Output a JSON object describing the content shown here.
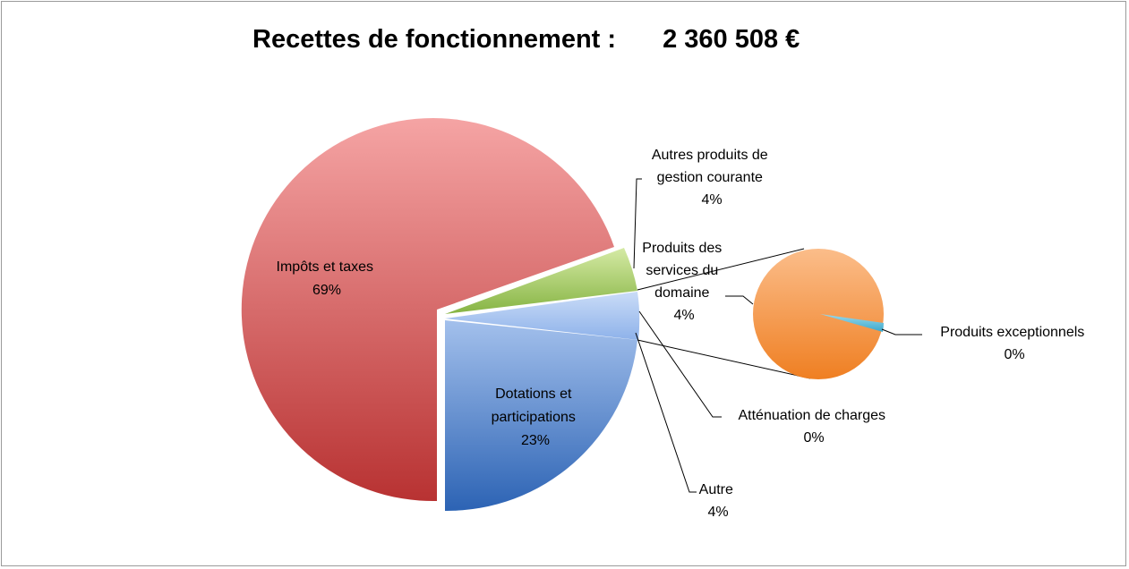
{
  "chart_data": {
    "type": "pie",
    "title": "Recettes de fonctionnement :",
    "total": "2 360 508 €",
    "slices": [
      {
        "name": "Impôts et taxes",
        "label": "69%",
        "value": 69,
        "color": "#c23b3b",
        "color_light": "#f5a4a4"
      },
      {
        "name": "Autres produits de gestion courante",
        "label": "4%",
        "value": 4,
        "color": "#8db84a",
        "color_light": "#cde59b"
      },
      {
        "name": "Autre",
        "label": "4%",
        "value": 4,
        "color": "#7fa6e6",
        "color_light": "#c9dbf7"
      },
      {
        "name": "Dotations et participations",
        "label": "23%",
        "value": 23,
        "color": "#2f66b8",
        "color_light": "#9fbde8"
      }
    ],
    "secondary_pie": {
      "label": "Produits des services du domaine",
      "slices": [
        {
          "name": "Produits des services du domaine",
          "label": "4%",
          "value": 4,
          "color": "#f0842a",
          "color_light": "#fbbf8b"
        },
        {
          "name": "Produits exceptionnels",
          "label": "0%",
          "value": 0,
          "color": "#4cb6d6",
          "color_light": "#8ed4ea"
        },
        {
          "name": "Atténuation de charges",
          "label": "0%",
          "value": 0,
          "color": "#7ec9d9",
          "color_light": "#b2e2ec"
        }
      ]
    },
    "labels": {
      "impots": [
        "Impôts et taxes",
        "69%"
      ],
      "autres_produits": [
        "Autres produits de",
        "gestion courante",
        "4%"
      ],
      "produits_services": [
        "Produits des",
        "services du",
        "domaine",
        "4%"
      ],
      "dotations": [
        "Dotations et",
        "participations",
        "23%"
      ],
      "produits_exceptionnels": [
        "Produits exceptionnels",
        "0%"
      ],
      "attenuation": [
        "Atténuation de charges",
        "0%"
      ],
      "autre": [
        "Autre",
        "4%"
      ]
    }
  }
}
